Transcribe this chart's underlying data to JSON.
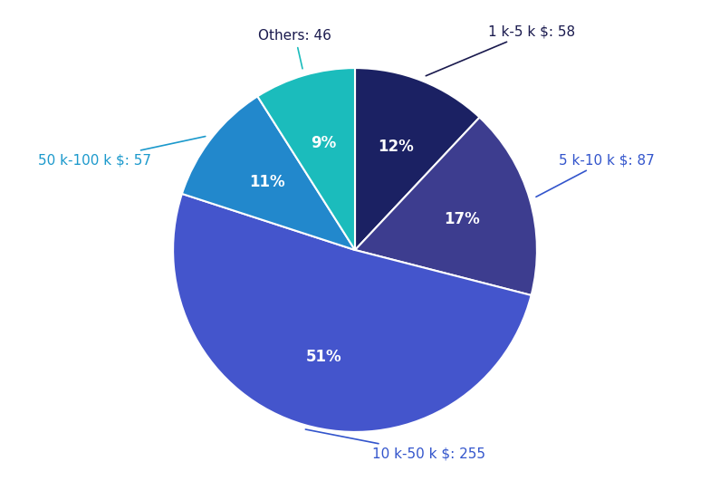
{
  "segments": [
    {
      "label": "1 k-5 k $: 58",
      "pct": 12,
      "value": 58,
      "color": "#1b2163"
    },
    {
      "label": "5 k-10 k $: 87",
      "pct": 17,
      "value": 87,
      "color": "#3d3d8f"
    },
    {
      "label": "10 k-50 k $: 255",
      "pct": 51,
      "value": 255,
      "color": "#4455cc"
    },
    {
      "label": "50 k-100 k $: 57",
      "pct": 11,
      "value": 57,
      "color": "#2288cc"
    },
    {
      "label": "Others: 46",
      "pct": 9,
      "value": 46,
      "color": "#1bbcbc"
    }
  ],
  "pct_labels": [
    "12%",
    "17%",
    "51%",
    "11%",
    "9%"
  ],
  "dark_annotation_color": "#1a1a4e",
  "teal_annotation_color": "#1bbcbc",
  "blue_annotation_color": "#3355cc",
  "label_fontsize": 11,
  "pct_fontsize": 12,
  "background_color": "#ffffff",
  "startangle": 90
}
